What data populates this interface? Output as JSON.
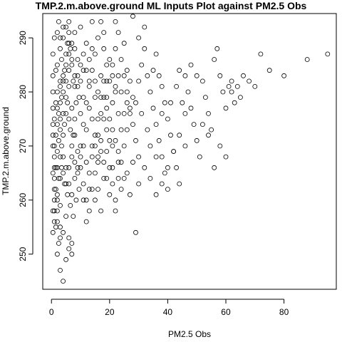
{
  "chart_data": {
    "type": "scatter",
    "title": "TMP.2.m.above.ground ML Inputs Plot against PM2.5 Obs",
    "xlabel": "PM2.5 Obs",
    "ylabel": "TMP.2.m.above.ground",
    "xlim": [
      -3,
      98
    ],
    "ylim": [
      243.5,
      294.5
    ],
    "x_ticks": [
      0,
      20,
      40,
      60,
      80
    ],
    "y_ticks": [
      250,
      260,
      270,
      280,
      290
    ],
    "marker": "open-circle",
    "grid": false,
    "points": [
      [
        0.5,
        270
      ],
      [
        1,
        275
      ],
      [
        1.5,
        278
      ],
      [
        2,
        280
      ],
      [
        3,
        282
      ],
      [
        4,
        276
      ],
      [
        5,
        279
      ],
      [
        6,
        281
      ],
      [
        7,
        277
      ],
      [
        8,
        283
      ],
      [
        2,
        285
      ],
      [
        3,
        288
      ],
      [
        4,
        290
      ],
      [
        5,
        292
      ],
      [
        6,
        289
      ],
      [
        2.5,
        293
      ],
      [
        1,
        290
      ],
      [
        0.5,
        287
      ],
      [
        1.5,
        284
      ],
      [
        3.5,
        286
      ],
      [
        0.5,
        265
      ],
      [
        1,
        262
      ],
      [
        2,
        260
      ],
      [
        3,
        264
      ],
      [
        4,
        268
      ],
      [
        5,
        266
      ],
      [
        6,
        263
      ],
      [
        7,
        261
      ],
      [
        8,
        267
      ],
      [
        9,
        265
      ],
      [
        1,
        258
      ],
      [
        2,
        256
      ],
      [
        3,
        255
      ],
      [
        4,
        254
      ],
      [
        5,
        257
      ],
      [
        6,
        253
      ],
      [
        7,
        252
      ],
      [
        0.5,
        254
      ],
      [
        2,
        250
      ],
      [
        3,
        247
      ],
      [
        4,
        245
      ],
      [
        5,
        249
      ],
      [
        7,
        250
      ],
      [
        6,
        251
      ],
      [
        2,
        261
      ],
      [
        3,
        259
      ],
      [
        10,
        270
      ],
      [
        11,
        274
      ],
      [
        12,
        278
      ],
      [
        13,
        281
      ],
      [
        14,
        284
      ],
      [
        15,
        287
      ],
      [
        16,
        290
      ],
      [
        17,
        293
      ],
      [
        18,
        288
      ],
      [
        19,
        285
      ],
      [
        10,
        266
      ],
      [
        11,
        263
      ],
      [
        12,
        260
      ],
      [
        13,
        258
      ],
      [
        14,
        262
      ],
      [
        15,
        265
      ],
      [
        16,
        268
      ],
      [
        17,
        271
      ],
      [
        18,
        275
      ],
      [
        19,
        279
      ],
      [
        20,
        282
      ],
      [
        21,
        285
      ],
      [
        22,
        288
      ],
      [
        23,
        291
      ],
      [
        24,
        286
      ],
      [
        25,
        283
      ],
      [
        26,
        280
      ],
      [
        27,
        277
      ],
      [
        28,
        274
      ],
      [
        29,
        271
      ],
      [
        30,
        268
      ],
      [
        20,
        266
      ],
      [
        21,
        263
      ],
      [
        22,
        260
      ],
      [
        23,
        264
      ],
      [
        24,
        267
      ],
      [
        25,
        270
      ],
      [
        26,
        273
      ],
      [
        27,
        276
      ],
      [
        28,
        279
      ],
      [
        29,
        254
      ],
      [
        30,
        282
      ],
      [
        31,
        285
      ],
      [
        32,
        288
      ],
      [
        33,
        283
      ],
      [
        34,
        280
      ],
      [
        35,
        277
      ],
      [
        36,
        274
      ],
      [
        37,
        271
      ],
      [
        38,
        268
      ],
      [
        39,
        265
      ],
      [
        40,
        262
      ],
      [
        35,
        284
      ],
      [
        36,
        287
      ],
      [
        37,
        283
      ],
      [
        38,
        281
      ],
      [
        39,
        278
      ],
      [
        40,
        275
      ],
      [
        41,
        272
      ],
      [
        42,
        269
      ],
      [
        43,
        266
      ],
      [
        44,
        263
      ],
      [
        45,
        278
      ],
      [
        46,
        283
      ],
      [
        47,
        280
      ],
      [
        48,
        277
      ],
      [
        49,
        274
      ],
      [
        50,
        271
      ],
      [
        51,
        268
      ],
      [
        52,
        282
      ],
      [
        53,
        279
      ],
      [
        54,
        276
      ],
      [
        55,
        273
      ],
      [
        56,
        286
      ],
      [
        57,
        288
      ],
      [
        58,
        283
      ],
      [
        59,
        280
      ],
      [
        60,
        277
      ],
      [
        61,
        281
      ],
      [
        62,
        282
      ],
      [
        63,
        278
      ],
      [
        64,
        281
      ],
      [
        65,
        279
      ],
      [
        66,
        283
      ],
      [
        68,
        282
      ],
      [
        70,
        281
      ],
      [
        72,
        287
      ],
      [
        75,
        284
      ],
      [
        80,
        283
      ],
      [
        88,
        286
      ],
      [
        95,
        287
      ],
      [
        30,
        290
      ],
      [
        32,
        292
      ],
      [
        28,
        294
      ],
      [
        22,
        293
      ],
      [
        25,
        289
      ],
      [
        18,
        291
      ],
      [
        14,
        293
      ],
      [
        10,
        292
      ],
      [
        8,
        291
      ],
      [
        6,
        293
      ],
      [
        4,
        292
      ],
      [
        3,
        290
      ],
      [
        2,
        291
      ],
      [
        9,
        286
      ],
      [
        11,
        284
      ],
      [
        13,
        282
      ],
      [
        15,
        279
      ],
      [
        17,
        276
      ],
      [
        19,
        273
      ],
      [
        21,
        270
      ],
      [
        23,
        267
      ],
      [
        25,
        264
      ],
      [
        27,
        261
      ],
      [
        8,
        272
      ],
      [
        9,
        269
      ],
      [
        10,
        276
      ],
      [
        12,
        273
      ],
      [
        14,
        270
      ],
      [
        16,
        267
      ],
      [
        18,
        264
      ],
      [
        20,
        261
      ],
      [
        22,
        258
      ],
      [
        24,
        262
      ],
      [
        0.5,
        280
      ],
      [
        0.5,
        283
      ],
      [
        0.5,
        277
      ],
      [
        0.5,
        274
      ],
      [
        0.5,
        272
      ],
      [
        1,
        268
      ],
      [
        1,
        266
      ],
      [
        1,
        270
      ],
      [
        1.5,
        272
      ],
      [
        2,
        274
      ],
      [
        2.5,
        276
      ],
      [
        3,
        273
      ],
      [
        3.5,
        270
      ],
      [
        4,
        272
      ],
      [
        4.5,
        274
      ],
      [
        5,
        276
      ],
      [
        5.5,
        278
      ],
      [
        6,
        275
      ],
      [
        6.5,
        273
      ],
      [
        7,
        270
      ],
      [
        7.5,
        272
      ],
      [
        8,
        275
      ],
      [
        8.5,
        278
      ],
      [
        9,
        281
      ],
      [
        9.5,
        279
      ],
      [
        10,
        282
      ],
      [
        11,
        279
      ],
      [
        12,
        284
      ],
      [
        13,
        277
      ],
      [
        14,
        275
      ],
      [
        15,
        272
      ],
      [
        16,
        275
      ],
      [
        17,
        279
      ],
      [
        18,
        282
      ],
      [
        19,
        277
      ],
      [
        20,
        275
      ],
      [
        21,
        278
      ],
      [
        22,
        281
      ],
      [
        23,
        276
      ],
      [
        24,
        273
      ],
      [
        26,
        284
      ],
      [
        27,
        282
      ],
      [
        29,
        278
      ],
      [
        31,
        276
      ],
      [
        33,
        273
      ],
      [
        34,
        270
      ],
      [
        36,
        268
      ],
      [
        38,
        276
      ],
      [
        41,
        278
      ],
      [
        43,
        281
      ],
      [
        44,
        284
      ],
      [
        46,
        276
      ],
      [
        48,
        285
      ],
      [
        50,
        283
      ],
      [
        52,
        274
      ],
      [
        54,
        272
      ],
      [
        56,
        266
      ],
      [
        58,
        270
      ],
      [
        60,
        268
      ],
      [
        62,
        280
      ],
      [
        1,
        260
      ],
      [
        1.5,
        262
      ],
      [
        2.5,
        264
      ],
      [
        3.5,
        266
      ],
      [
        4.5,
        263
      ],
      [
        5.5,
        261
      ],
      [
        6.5,
        259
      ],
      [
        7.5,
        257
      ],
      [
        8.5,
        260
      ],
      [
        9.5,
        262
      ],
      [
        11,
        260
      ],
      [
        12,
        256
      ],
      [
        13,
        262
      ],
      [
        15,
        260
      ],
      [
        16,
        262
      ],
      [
        17,
        258
      ],
      [
        19,
        264
      ],
      [
        21,
        266
      ],
      [
        23,
        269
      ],
      [
        26,
        265
      ],
      [
        28,
        267
      ],
      [
        30,
        263
      ],
      [
        32,
        266
      ],
      [
        34,
        264
      ],
      [
        36,
        261
      ],
      [
        38,
        263
      ],
      [
        40,
        266
      ],
      [
        42,
        269
      ],
      [
        44,
        272
      ],
      [
        46,
        270
      ],
      [
        3,
        278
      ],
      [
        4,
        280
      ],
      [
        5,
        282
      ],
      [
        6,
        284
      ],
      [
        7,
        286
      ],
      [
        8,
        288
      ],
      [
        2,
        277
      ],
      [
        3,
        281
      ],
      [
        4,
        283
      ],
      [
        5,
        285
      ],
      [
        6,
        287
      ],
      [
        7,
        289
      ],
      [
        8,
        281
      ],
      [
        9,
        283
      ],
      [
        10,
        285
      ],
      [
        11,
        287
      ],
      [
        12,
        289
      ],
      [
        13,
        286
      ],
      [
        14,
        288
      ],
      [
        15,
        282
      ],
      [
        16,
        280
      ],
      [
        17,
        283
      ],
      [
        18,
        279
      ],
      [
        19,
        282
      ],
      [
        20,
        286
      ],
      [
        21,
        283
      ],
      [
        22,
        280
      ],
      [
        23,
        283
      ],
      [
        24,
        280
      ],
      [
        25,
        276
      ],
      [
        26,
        278
      ],
      [
        2,
        266
      ],
      [
        3,
        268
      ],
      [
        4,
        265
      ],
      [
        5,
        263
      ],
      [
        6,
        266
      ],
      [
        7,
        268
      ],
      [
        8,
        264
      ],
      [
        9,
        266
      ],
      [
        10,
        268
      ],
      [
        11,
        270
      ],
      [
        12,
        267
      ],
      [
        13,
        265
      ],
      [
        14,
        268
      ],
      [
        15,
        270
      ],
      [
        16,
        272
      ],
      [
        17,
        269
      ],
      [
        18,
        267
      ],
      [
        19,
        269
      ],
      [
        20,
        271
      ],
      [
        21,
        273
      ],
      [
        22,
        271
      ],
      [
        0.5,
        258
      ],
      [
        1,
        256
      ],
      [
        1.5,
        255
      ],
      [
        2,
        258
      ],
      [
        2.5,
        252
      ],
      [
        3,
        253
      ],
      [
        1,
        264
      ],
      [
        1.5,
        266
      ],
      [
        2,
        269
      ],
      [
        2.5,
        271
      ],
      [
        3,
        275
      ],
      [
        3.5,
        279
      ],
      [
        4,
        282
      ],
      [
        4.5,
        284
      ],
      [
        5,
        287
      ],
      [
        5.5,
        289
      ],
      [
        6,
        291
      ],
      [
        6.5,
        288
      ],
      [
        7,
        285
      ],
      [
        7.5,
        282
      ]
    ]
  }
}
